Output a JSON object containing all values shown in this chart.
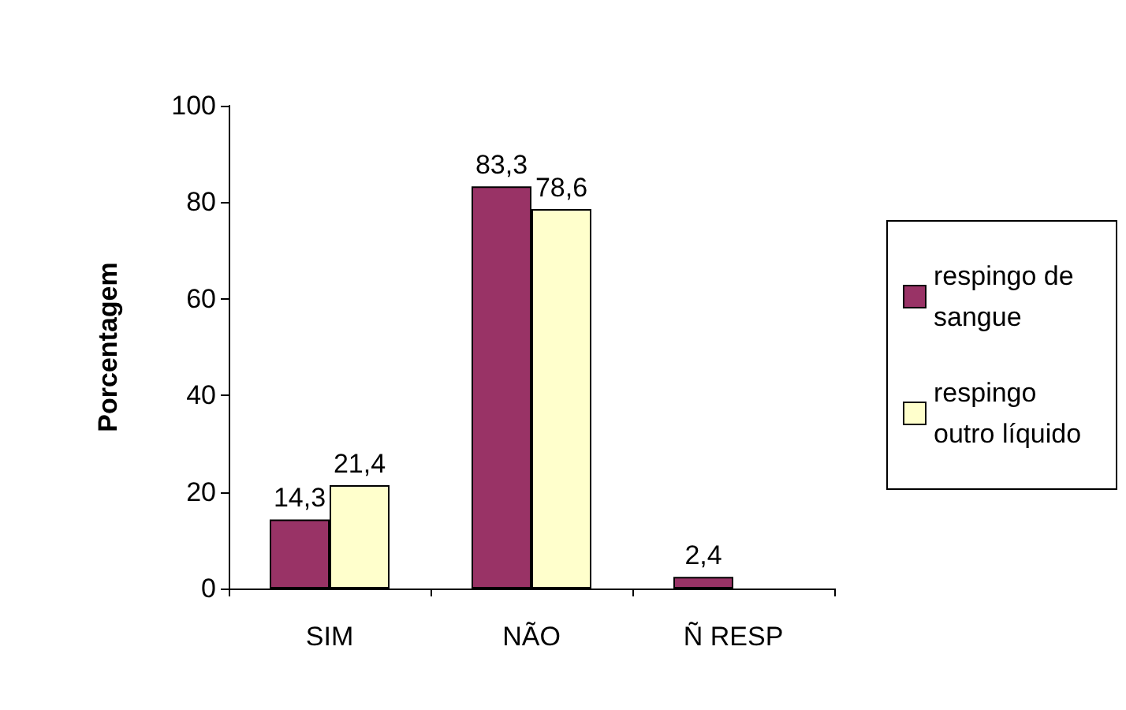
{
  "chart_data": {
    "type": "bar",
    "ylabel": "Porcentagem",
    "categories": [
      "SIM",
      "NÃO",
      "Ñ RESP"
    ],
    "series": [
      {
        "name": "respingo de sangue",
        "color": "#993366",
        "values": [
          14.3,
          83.3,
          2.4
        ],
        "value_labels": [
          "14,3",
          "83,3",
          "2,4"
        ]
      },
      {
        "name": "respingo outro líquido",
        "color": "#ffffcc",
        "values": [
          21.4,
          78.6,
          null
        ],
        "value_labels": [
          "21,4",
          "78,6",
          null
        ]
      }
    ],
    "ylim": [
      0,
      100
    ],
    "yticks": [
      0,
      20,
      40,
      60,
      80,
      100
    ],
    "grid": false,
    "legend": "right"
  }
}
